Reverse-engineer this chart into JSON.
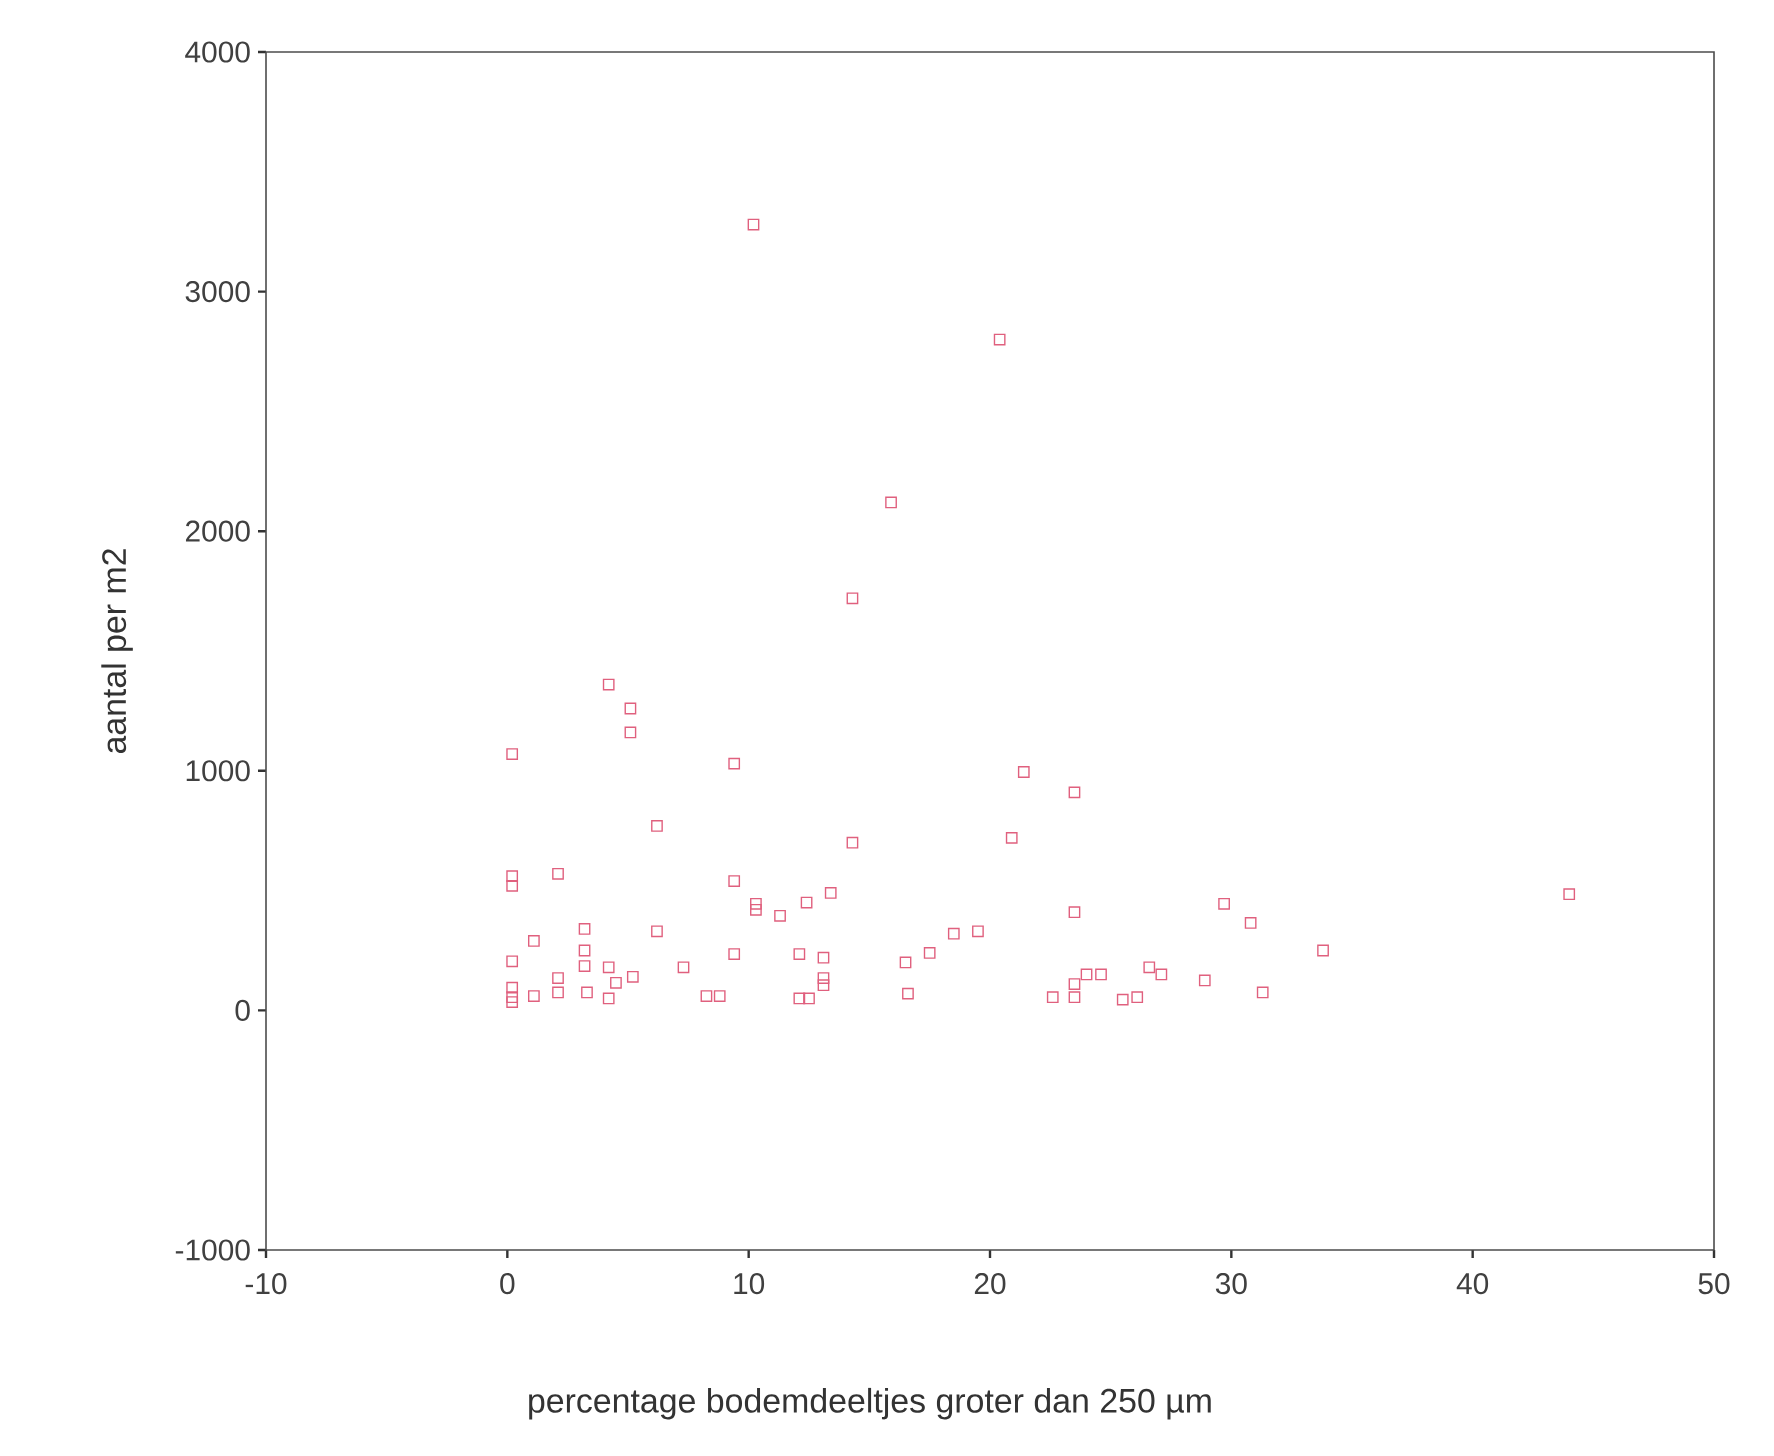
{
  "chart_data": {
    "type": "scatter",
    "xlabel": "percentage bodemdeeltjes groter dan 250 µm",
    "ylabel": "aantal per m2",
    "xlim": [
      -10,
      50
    ],
    "ylim": [
      -1000,
      4000
    ],
    "xticks": [
      -10,
      0,
      10,
      20,
      30,
      40,
      50
    ],
    "yticks": [
      -1000,
      0,
      1000,
      2000,
      3000,
      4000
    ],
    "marker": "square",
    "grid": false,
    "series": [
      {
        "color": "#e0607e",
        "x": [
          10.2,
          20.4,
          15.9,
          14.3,
          4.2,
          5.1,
          5.1,
          0.2,
          9.4,
          6.2,
          14.3,
          0.2,
          0.2,
          2.1,
          9.4,
          10.3,
          10.3,
          11.3,
          12.4,
          13.4,
          1.1,
          3.2,
          3.2,
          3.2,
          6.2,
          0.2,
          4.2,
          7.3,
          9.4,
          12.1,
          13.1,
          13.1,
          13.1,
          2.1,
          2.1,
          3.3,
          4.5,
          5.2,
          4.2,
          0.2,
          0.2,
          0.2,
          1.1,
          8.25,
          8.8,
          12.1,
          12.5,
          16.5,
          16.6,
          17.5,
          21.4,
          23.5,
          20.9,
          23.5,
          18.5,
          19.5,
          22.6,
          23.5,
          23.5,
          24.0,
          24.6,
          25.5,
          26.1,
          26.6,
          27.1,
          28.9,
          29.7,
          30.8,
          31.3,
          33.8,
          44.0
        ],
        "values": [
          3280,
          2800,
          2120,
          1720,
          1360,
          1260,
          1160,
          1070,
          1030,
          770,
          700,
          560,
          520,
          570,
          540,
          445,
          420,
          395,
          450,
          490,
          290,
          340,
          250,
          185,
          330,
          205,
          180,
          180,
          235,
          235,
          220,
          135,
          105,
          135,
          75,
          75,
          115,
          140,
          50,
          95,
          55,
          35,
          60,
          60,
          60,
          50,
          50,
          200,
          70,
          240,
          995,
          910,
          720,
          410,
          320,
          330,
          55,
          110,
          55,
          150,
          150,
          45,
          55,
          180,
          150,
          125,
          445,
          365,
          75,
          250,
          485
        ]
      }
    ]
  }
}
